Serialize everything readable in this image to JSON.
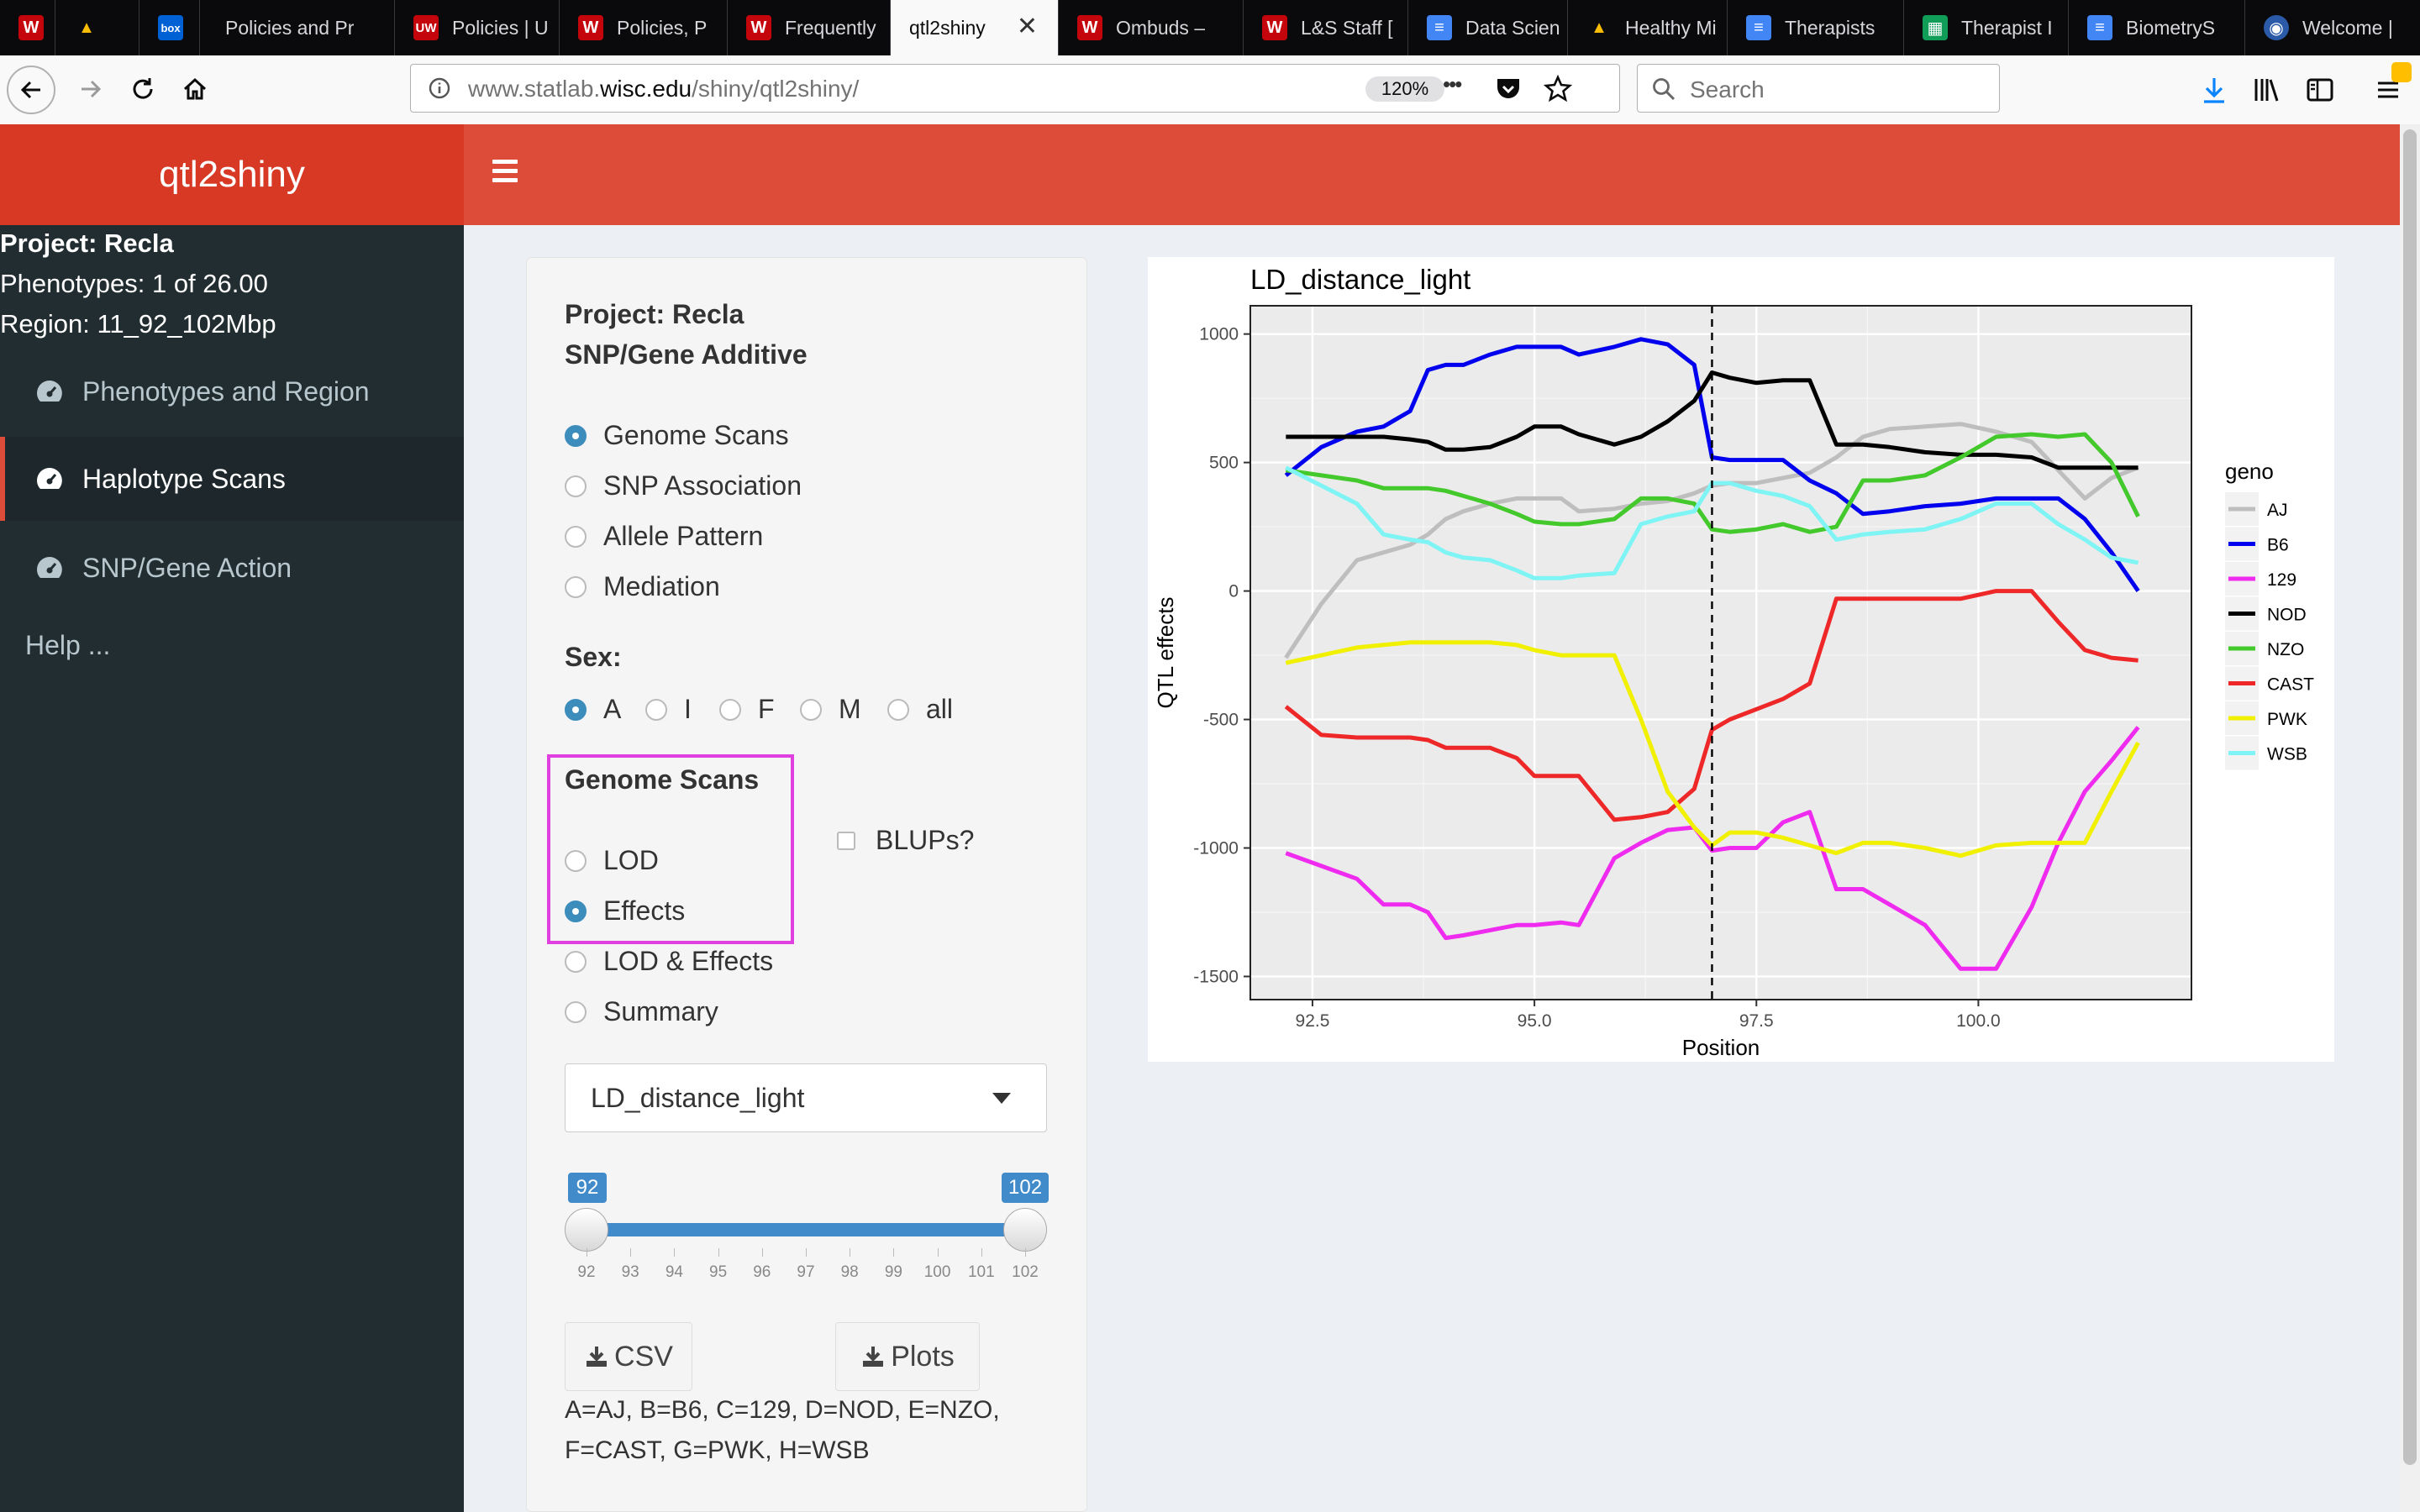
{
  "browser": {
    "tabs": [
      {
        "label": "",
        "icon": "uw-crest-icon",
        "active": false
      },
      {
        "label": "",
        "icon": "google-drive-icon",
        "active": false
      },
      {
        "label": "",
        "icon": "box-icon",
        "active": false
      },
      {
        "label": "Policies and Pr",
        "icon": "",
        "active": false
      },
      {
        "label": "Policies | U",
        "icon": "uw-crest-icon",
        "active": false
      },
      {
        "label": "Policies, P",
        "icon": "uw-crest-icon",
        "active": false
      },
      {
        "label": "Frequently",
        "icon": "uw-crest-icon",
        "active": false
      },
      {
        "label": "qtl2shiny",
        "icon": "",
        "active": true
      },
      {
        "label": "Ombuds –",
        "icon": "uw-crest-icon",
        "active": false
      },
      {
        "label": "L&S Staff [",
        "icon": "uw-crest-icon",
        "active": false
      },
      {
        "label": "Data Scien",
        "icon": "google-docs-icon",
        "active": false
      },
      {
        "label": "Healthy Mi",
        "icon": "google-drive-icon",
        "active": false
      },
      {
        "label": "Therapists",
        "icon": "google-docs-icon",
        "active": false
      },
      {
        "label": "Therapist I",
        "icon": "google-sheets-icon",
        "active": false
      },
      {
        "label": "BiometryS",
        "icon": "google-docs-icon",
        "active": false
      },
      {
        "label": "Welcome |",
        "icon": "globe-icon",
        "active": false
      }
    ],
    "url_prefix": "www.statlab.",
    "url_domain": "wisc.edu",
    "url_path": "/shiny/qtl2shiny/",
    "zoom": "120%",
    "search_placeholder": "Search",
    "more_dots": "•••"
  },
  "app": {
    "title": "qtl2shiny",
    "sidebar": {
      "project": "Project: Recla",
      "phenotypes": "Phenotypes: 1 of 26.00",
      "region": "Region: 11_92_102Mbp",
      "items": [
        {
          "label": "Phenotypes and Region",
          "active": false
        },
        {
          "label": "Haplotype Scans",
          "active": true
        },
        {
          "label": "SNP/Gene Action",
          "active": false
        }
      ],
      "help": "Help ..."
    },
    "panel": {
      "project_line": "Project: Recla",
      "mode_line": "SNP/Gene Additive",
      "scan_types": [
        {
          "label": "Genome Scans",
          "checked": true
        },
        {
          "label": "SNP Association",
          "checked": false
        },
        {
          "label": "Allele Pattern",
          "checked": false
        },
        {
          "label": "Mediation",
          "checked": false
        }
      ],
      "sex_label": "Sex:",
      "sex_options": [
        {
          "label": "A",
          "checked": true
        },
        {
          "label": "I",
          "checked": false
        },
        {
          "label": "F",
          "checked": false
        },
        {
          "label": "M",
          "checked": false
        },
        {
          "label": "all",
          "checked": false
        }
      ],
      "genome_scans_label": "Genome Scans",
      "scan_outputs": [
        {
          "label": "LOD",
          "checked": false
        },
        {
          "label": "Effects",
          "checked": true
        },
        {
          "label": "LOD & Effects",
          "checked": false
        },
        {
          "label": "Summary",
          "checked": false
        }
      ],
      "blups_label": "BLUPs?",
      "phenotype_select": "LD_distance_light",
      "slider": {
        "min": 92,
        "max": 102,
        "low": "92",
        "high": "102",
        "ticks": [
          "92",
          "93",
          "94",
          "95",
          "96",
          "97",
          "98",
          "99",
          "100",
          "101",
          "102"
        ]
      },
      "csv_button": "CSV",
      "plots_button": "Plots",
      "legend_note_1": "A=AJ, B=B6, C=129, D=NOD, E=NZO,",
      "legend_note_2": "F=CAST, G=PWK, H=WSB"
    }
  },
  "chart_data": {
    "type": "line",
    "title": "LD_distance_light",
    "xlabel": "Position",
    "ylabel": "QTL effects",
    "xlim": [
      91.8,
      102.4
    ],
    "ylim": [
      -1590,
      1110
    ],
    "xticks": [
      92.5,
      95.0,
      97.5,
      100.0
    ],
    "xtick_labels": [
      "92.5",
      "95.0",
      "97.5",
      "100.0"
    ],
    "yticks": [
      1000,
      500,
      0,
      -500,
      -1000,
      -1500
    ],
    "ytick_labels": [
      "1000",
      "500",
      "0",
      "-500",
      "-1000",
      "-1500"
    ],
    "vline": 97.0,
    "grid": true,
    "legend_title": "geno",
    "legend_position": "right",
    "x": [
      92.2,
      92.6,
      93.0,
      93.3,
      93.6,
      93.8,
      94.0,
      94.2,
      94.5,
      94.8,
      95.0,
      95.3,
      95.5,
      95.9,
      96.2,
      96.5,
      96.8,
      97.0,
      97.2,
      97.5,
      97.8,
      98.1,
      98.4,
      98.7,
      99.0,
      99.4,
      99.8,
      100.2,
      100.6,
      100.9,
      101.2,
      101.5,
      101.8
    ],
    "series": [
      {
        "name": "AJ",
        "color": "#bebebe",
        "values": [
          -260,
          -50,
          120,
          150,
          180,
          220,
          280,
          310,
          340,
          360,
          360,
          360,
          310,
          320,
          340,
          350,
          380,
          410,
          420,
          420,
          440,
          460,
          520,
          600,
          630,
          640,
          650,
          620,
          580,
          470,
          360,
          440,
          480
        ]
      },
      {
        "name": "B6",
        "color": "#0000ee",
        "values": [
          450,
          560,
          620,
          640,
          700,
          860,
          880,
          880,
          920,
          950,
          950,
          950,
          920,
          950,
          980,
          960,
          880,
          520,
          510,
          510,
          510,
          430,
          380,
          300,
          310,
          330,
          340,
          360,
          360,
          360,
          280,
          150,
          0
        ]
      },
      {
        "name": "129",
        "color": "#ee2bee",
        "values": [
          -1020,
          -1070,
          -1120,
          -1220,
          -1220,
          -1250,
          -1350,
          -1340,
          -1320,
          -1300,
          -1300,
          -1290,
          -1300,
          -1040,
          -980,
          -930,
          -920,
          -1010,
          -1000,
          -1000,
          -900,
          -860,
          -1160,
          -1160,
          -1220,
          -1300,
          -1470,
          -1470,
          -1230,
          -980,
          -780,
          -660,
          -530
        ]
      },
      {
        "name": "NOD",
        "color": "#000000",
        "values": [
          600,
          600,
          600,
          600,
          590,
          580,
          550,
          550,
          560,
          600,
          640,
          640,
          610,
          570,
          600,
          660,
          740,
          850,
          830,
          810,
          820,
          820,
          570,
          570,
          560,
          540,
          530,
          530,
          520,
          480,
          480,
          480,
          480
        ]
      },
      {
        "name": "NZO",
        "color": "#43c92b",
        "values": [
          470,
          450,
          430,
          400,
          400,
          400,
          390,
          370,
          340,
          300,
          270,
          260,
          260,
          280,
          360,
          360,
          340,
          240,
          230,
          240,
          260,
          230,
          250,
          430,
          430,
          450,
          520,
          600,
          610,
          600,
          610,
          500,
          290
        ]
      },
      {
        "name": "CAST",
        "color": "#ee2828",
        "values": [
          -450,
          -560,
          -570,
          -570,
          -570,
          -580,
          -610,
          -610,
          -610,
          -650,
          -720,
          -720,
          -720,
          -890,
          -880,
          -860,
          -770,
          -540,
          -500,
          -460,
          -420,
          -360,
          -30,
          -30,
          -30,
          -30,
          -30,
          0,
          0,
          -120,
          -230,
          -260,
          -270
        ]
      },
      {
        "name": "PWK",
        "color": "#f0f000",
        "values": [
          -280,
          -250,
          -220,
          -210,
          -200,
          -200,
          -200,
          -200,
          -200,
          -210,
          -230,
          -250,
          -250,
          -250,
          -500,
          -780,
          -920,
          -990,
          -940,
          -940,
          -960,
          -990,
          -1020,
          -980,
          -980,
          -1000,
          -1030,
          -990,
          -980,
          -980,
          -980,
          -780,
          -590
        ]
      },
      {
        "name": "WSB",
        "color": "#7ff4f4",
        "values": [
          480,
          410,
          340,
          220,
          200,
          190,
          150,
          130,
          120,
          80,
          50,
          50,
          60,
          70,
          260,
          290,
          310,
          420,
          420,
          390,
          370,
          330,
          200,
          220,
          230,
          240,
          280,
          340,
          340,
          260,
          200,
          130,
          110
        ]
      }
    ]
  }
}
